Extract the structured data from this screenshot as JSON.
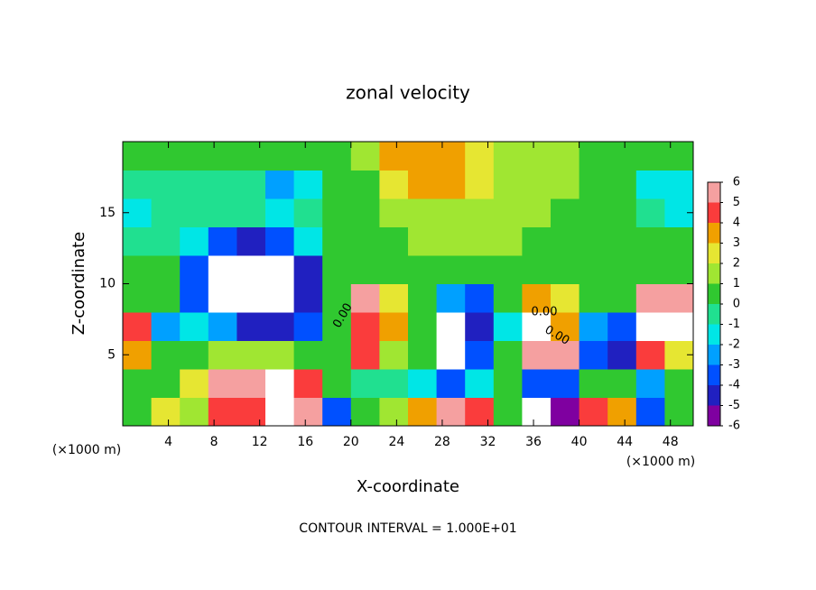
{
  "chart_data": {
    "type": "heatmap",
    "title": "zonal velocity",
    "xlabel": "X-coordinate",
    "ylabel": "Z-coordinate",
    "xunit": "(×1000 m)",
    "yunit": "(×1000 m)",
    "footer": "CONTOUR INTERVAL = 1.000E+01",
    "contour_labels": [
      "0.00",
      "0.00",
      "0.00"
    ],
    "xlim": [
      0,
      50
    ],
    "ylim": [
      0,
      20
    ],
    "xticks": [
      4,
      8,
      12,
      16,
      20,
      24,
      28,
      32,
      36,
      40,
      44,
      48
    ],
    "yticks": [
      5,
      10,
      15
    ],
    "clim": [
      -6,
      6
    ],
    "cticks": [
      6,
      5,
      4,
      3,
      2,
      1,
      0,
      -1,
      -2,
      -3,
      -4,
      -5,
      -6
    ],
    "colors": [
      "#7f00a0",
      "#2020c0",
      "#0050ff",
      "#00a0ff",
      "#00e6e6",
      "#20e090",
      "#30c830",
      "#a0e632",
      "#e6e632",
      "#f0a000",
      "#fa3c3c",
      "#f5a0a0"
    ],
    "out_of_range_color": "#ffffff",
    "x": [
      1.25,
      3.75,
      6.25,
      8.75,
      11.25,
      13.75,
      16.25,
      18.75,
      21.25,
      23.75,
      26.25,
      28.75,
      31.25,
      33.75,
      36.25,
      38.75,
      41.25,
      43.75,
      46.25,
      48.75
    ],
    "y": [
      1,
      3,
      5,
      7,
      9,
      11,
      13,
      15,
      17,
      19
    ],
    "z": [
      [
        0.5,
        2,
        1,
        4,
        4,
        7,
        6,
        -4,
        0,
        1,
        3,
        5,
        4,
        0,
        -7,
        -6,
        4,
        3,
        -4,
        0
      ],
      [
        0.5,
        0.5,
        2,
        5,
        6,
        7,
        4,
        0,
        -1,
        -0.5,
        -2,
        -4,
        -2,
        0,
        -4,
        -4,
        0.5,
        0,
        -3,
        0
      ],
      [
        3,
        0.5,
        0.5,
        1,
        1.5,
        1,
        0.5,
        0.5,
        4,
        1,
        0,
        -7,
        -4,
        0,
        5,
        5,
        -4,
        -5,
        4,
        2
      ],
      [
        4,
        -3,
        -2,
        -3,
        -5,
        -5,
        -4,
        0.5,
        4,
        3,
        0,
        -7,
        -5,
        -2,
        7,
        3,
        -3,
        -4,
        7,
        7
      ],
      [
        0,
        0.5,
        -4,
        -7,
        -8,
        -8,
        -5,
        0.5,
        5,
        2,
        0,
        -3,
        -4,
        0,
        3,
        2,
        0,
        0.5,
        5,
        5.5
      ],
      [
        0.5,
        0.5,
        -4,
        -7,
        -8,
        -8,
        -5,
        0,
        0.5,
        0.5,
        0,
        0,
        0.5,
        0.5,
        0.5,
        0,
        0.5,
        0.5,
        0.5,
        0.5
      ],
      [
        -0.5,
        -1,
        -2,
        -4,
        -5,
        -4,
        -2,
        0,
        0.5,
        0.5,
        1,
        1,
        1,
        1,
        0.5,
        0.5,
        0.5,
        0.5,
        0.5,
        0.5
      ],
      [
        -1.5,
        -1,
        -1,
        -1,
        -1,
        -1.5,
        -1,
        0,
        0.5,
        1,
        1.5,
        1.5,
        1.5,
        1,
        1,
        0.5,
        0.5,
        0,
        -1,
        -1.5
      ],
      [
        -1,
        -1,
        -0.5,
        -1,
        -1,
        -2.5,
        -2,
        0,
        0.5,
        2.5,
        3,
        3,
        2,
        1.5,
        1.5,
        1,
        0.5,
        0,
        -1.5,
        -2
      ],
      [
        0.5,
        0.5,
        0.5,
        0,
        0,
        0,
        0,
        0.5,
        1,
        3,
        3.5,
        3,
        2,
        1.5,
        1.5,
        1,
        0.5,
        0.5,
        0.5,
        0.5
      ]
    ]
  }
}
